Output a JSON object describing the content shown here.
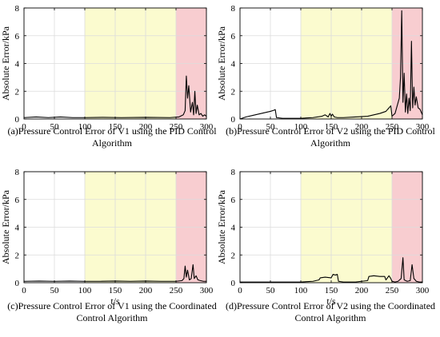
{
  "chart_data": [
    {
      "type": "line",
      "caption": [
        "(a)Pressure Control Error of V1 using the PID Control",
        "Algorithm"
      ],
      "xlabel": "",
      "ylabel": "Absolute Error/kPa",
      "xlim": [
        0,
        300
      ],
      "ylim": [
        0,
        8
      ],
      "xticks": [
        "0",
        "50",
        "100",
        "150",
        "200",
        "250",
        "300"
      ],
      "yticks": [
        "0",
        "2",
        "4",
        "6",
        "8"
      ],
      "grid": true,
      "bands": [
        {
          "x0": 100,
          "x1": 250,
          "color": "#fbfbcf"
        },
        {
          "x0": 250,
          "x1": 300,
          "color": "#f8cdd0"
        }
      ],
      "series": [
        {
          "color": "#000000",
          "x": [
            0,
            20,
            40,
            60,
            80,
            100,
            130,
            160,
            200,
            240,
            255,
            262,
            265,
            267,
            269,
            271,
            274,
            277,
            279,
            281,
            283,
            285,
            288,
            291,
            294,
            297,
            300
          ],
          "y": [
            0.1,
            0.15,
            0.1,
            0.15,
            0.1,
            0.1,
            0.12,
            0.1,
            0.12,
            0.1,
            0.15,
            0.3,
            0.6,
            3.1,
            1.5,
            2.4,
            0.5,
            1.2,
            0.3,
            2.0,
            0.4,
            1.0,
            0.3,
            0.4,
            0.2,
            0.3,
            0.2
          ]
        }
      ]
    },
    {
      "type": "line",
      "caption": [
        "(b)Pressure Control Error of V2 using the PID Control",
        "Algorithm"
      ],
      "xlabel": "",
      "ylabel": "Absolute Error/kPa",
      "xlim": [
        0,
        300
      ],
      "ylim": [
        0,
        8
      ],
      "xticks": [
        "0",
        "50",
        "100",
        "150",
        "200",
        "250",
        "300"
      ],
      "yticks": [
        "0",
        "2",
        "4",
        "6",
        "8"
      ],
      "grid": true,
      "bands": [
        {
          "x0": 100,
          "x1": 250,
          "color": "#fbfbcf"
        },
        {
          "x0": 250,
          "x1": 300,
          "color": "#f8cdd0"
        }
      ],
      "series": [
        {
          "color": "#000000",
          "x": [
            0,
            10,
            20,
            30,
            40,
            50,
            55,
            58,
            60,
            70,
            100,
            120,
            135,
            140,
            145,
            148,
            150,
            152,
            155,
            160,
            170,
            190,
            210,
            220,
            230,
            240,
            245,
            248,
            250,
            255,
            262,
            264,
            266,
            268,
            270,
            272,
            274,
            276,
            278,
            280,
            282,
            284,
            286,
            288,
            290,
            293,
            296,
            300
          ],
          "y": [
            0.0,
            0.15,
            0.25,
            0.35,
            0.45,
            0.55,
            0.62,
            0.68,
            0.1,
            0.05,
            0.05,
            0.1,
            0.2,
            0.3,
            0.15,
            0.4,
            0.2,
            0.35,
            0.15,
            0.1,
            0.1,
            0.15,
            0.2,
            0.3,
            0.4,
            0.55,
            0.8,
            0.95,
            0.2,
            0.4,
            1.5,
            3.0,
            7.8,
            1.2,
            3.3,
            0.5,
            1.8,
            0.4,
            1.5,
            0.6,
            5.6,
            0.8,
            2.3,
            1.0,
            1.6,
            0.8,
            0.7,
            0.3
          ]
        }
      ]
    },
    {
      "type": "line",
      "caption": [
        "(c)Pressure Control Error of V1 using the Coordinated",
        "Control Algorithm"
      ],
      "xlabel": "t/s",
      "ylabel": "Absolute Error/kPa",
      "xlim": [
        0,
        300
      ],
      "ylim": [
        0,
        8
      ],
      "xticks": [
        "0",
        "50",
        "100",
        "150",
        "200",
        "250",
        "300"
      ],
      "yticks": [
        "0",
        "2",
        "4",
        "6",
        "8"
      ],
      "grid": true,
      "bands": [
        {
          "x0": 100,
          "x1": 250,
          "color": "#fbfbcf"
        },
        {
          "x0": 250,
          "x1": 300,
          "color": "#f8cdd0"
        }
      ],
      "series": [
        {
          "color": "#000000",
          "x": [
            0,
            25,
            50,
            75,
            100,
            125,
            150,
            175,
            200,
            225,
            250,
            260,
            263,
            265,
            267,
            269,
            272,
            275,
            278,
            280,
            283,
            286,
            290,
            295,
            300
          ],
          "y": [
            0.1,
            0.12,
            0.1,
            0.12,
            0.1,
            0.1,
            0.12,
            0.1,
            0.12,
            0.1,
            0.1,
            0.15,
            0.3,
            1.2,
            0.4,
            0.9,
            0.2,
            0.3,
            1.3,
            0.3,
            0.5,
            0.2,
            0.15,
            0.1,
            0.1
          ]
        }
      ]
    },
    {
      "type": "line",
      "caption": [
        "(d)Pressure Control Error of V2 using the Coordinated",
        "Control Algorithm"
      ],
      "xlabel": "t/s",
      "ylabel": "Absolute Error/kPa",
      "xlim": [
        0,
        300
      ],
      "ylim": [
        0,
        8
      ],
      "xticks": [
        "0",
        "50",
        "100",
        "150",
        "200",
        "250",
        "300"
      ],
      "yticks": [
        "0",
        "2",
        "4",
        "6",
        "8"
      ],
      "grid": true,
      "bands": [
        {
          "x0": 100,
          "x1": 250,
          "color": "#fbfbcf"
        },
        {
          "x0": 250,
          "x1": 300,
          "color": "#f8cdd0"
        }
      ],
      "series": [
        {
          "color": "#000000",
          "x": [
            0,
            20,
            40,
            60,
            80,
            100,
            120,
            130,
            132,
            140,
            150,
            153,
            157,
            160,
            162,
            170,
            190,
            200,
            210,
            212,
            220,
            230,
            238,
            240,
            245,
            248,
            250,
            255,
            260,
            265,
            268,
            270,
            275,
            280,
            283,
            286,
            290,
            295,
            300
          ],
          "y": [
            0.05,
            0.05,
            0.05,
            0.05,
            0.05,
            0.05,
            0.1,
            0.2,
            0.35,
            0.4,
            0.35,
            0.6,
            0.55,
            0.6,
            0.1,
            0.05,
            0.05,
            0.1,
            0.15,
            0.45,
            0.5,
            0.45,
            0.45,
            0.2,
            0.5,
            0.3,
            0.1,
            0.05,
            0.1,
            0.3,
            1.8,
            0.2,
            0.1,
            0.15,
            1.3,
            0.3,
            0.1,
            0.05,
            0.05
          ]
        }
      ]
    }
  ]
}
